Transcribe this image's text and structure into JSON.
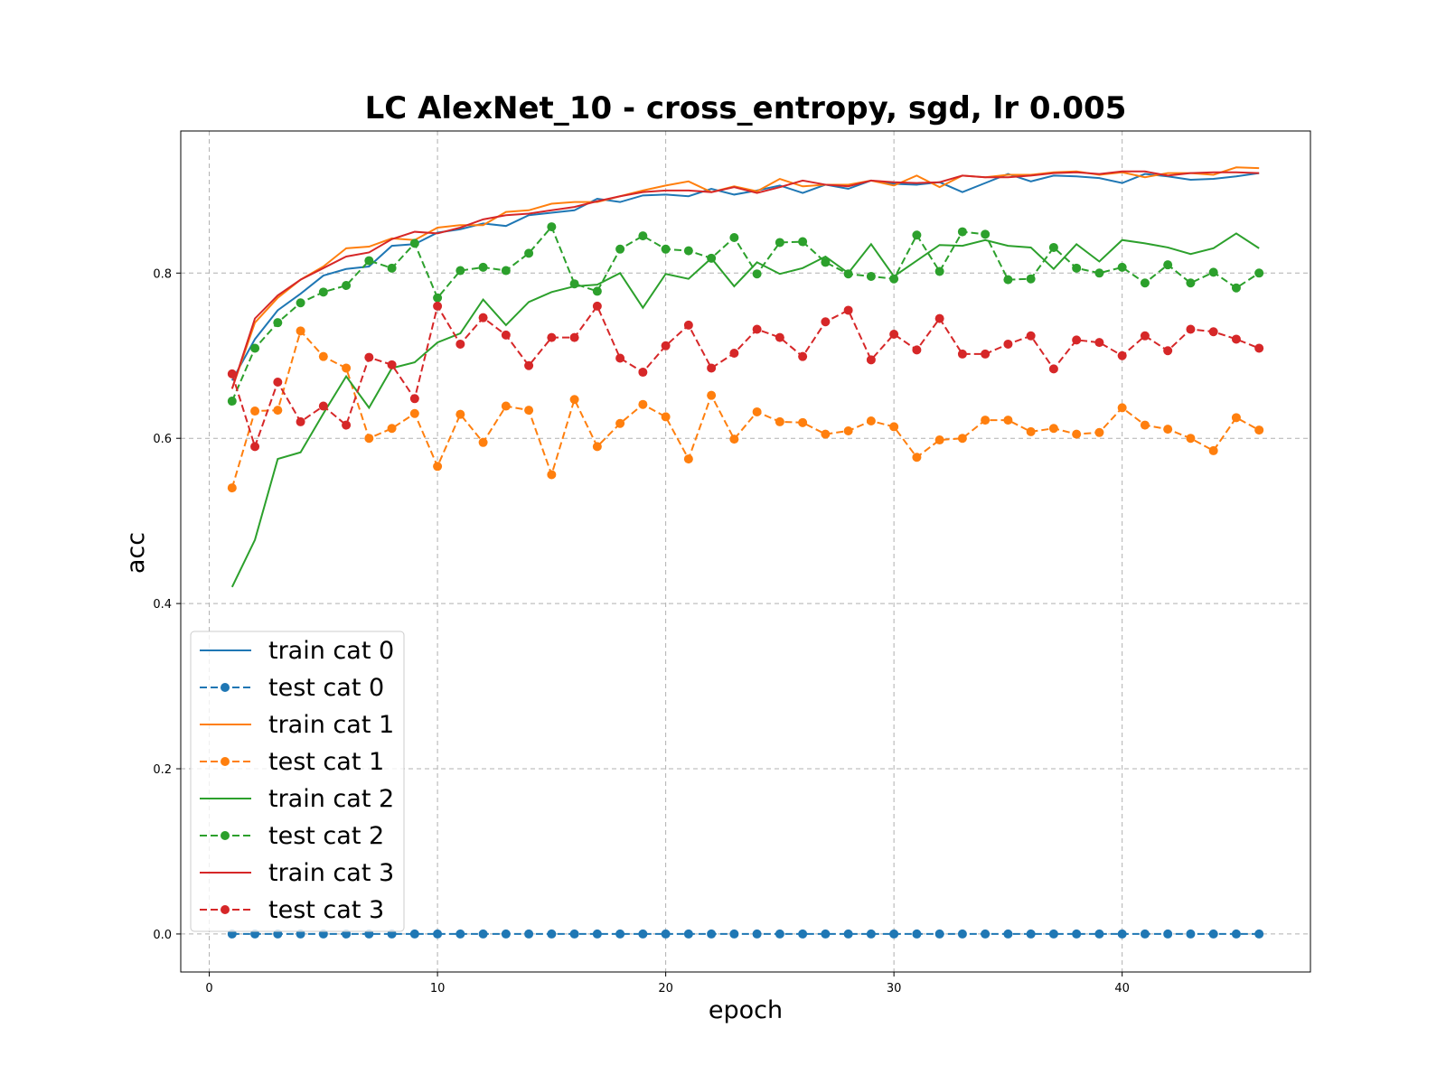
{
  "chart_data": {
    "type": "line",
    "title": "LC AlexNet_10 - cross_entropy, sgd, lr 0.005",
    "xlabel": "epoch",
    "ylabel": "acc",
    "xlim": [
      -1.25,
      48.25
    ],
    "ylim": [
      -0.046,
      0.972
    ],
    "xticks": [
      0,
      10,
      20,
      30,
      40
    ],
    "yticks": [
      0.0,
      0.2,
      0.4,
      0.6,
      0.8
    ],
    "grid": true,
    "legend_position": "lower-left",
    "x": [
      1,
      2,
      3,
      4,
      5,
      6,
      7,
      8,
      9,
      10,
      11,
      12,
      13,
      14,
      15,
      16,
      17,
      18,
      19,
      20,
      21,
      22,
      23,
      24,
      25,
      26,
      27,
      28,
      29,
      30,
      31,
      32,
      33,
      34,
      35,
      36,
      37,
      38,
      39,
      40,
      41,
      42,
      43,
      44,
      45,
      46
    ],
    "series": [
      {
        "name": "train cat 0",
        "color": "#1f77b4",
        "style": "solid",
        "values": [
          0.67,
          0.72,
          0.755,
          0.775,
          0.797,
          0.805,
          0.808,
          0.833,
          0.835,
          0.849,
          0.853,
          0.86,
          0.857,
          0.87,
          0.873,
          0.876,
          0.89,
          0.886,
          0.894,
          0.895,
          0.893,
          0.902,
          0.895,
          0.9,
          0.906,
          0.897,
          0.907,
          0.902,
          0.912,
          0.908,
          0.907,
          0.91,
          0.898,
          0.909,
          0.92,
          0.911,
          0.918,
          0.917,
          0.915,
          0.909,
          0.92,
          0.917,
          0.913,
          0.914,
          0.917,
          0.921
        ]
      },
      {
        "name": "test cat 0",
        "color": "#1f77b4",
        "style": "dashed",
        "values": [
          0,
          0,
          0,
          0,
          0,
          0,
          0,
          0,
          0,
          0,
          0,
          0,
          0,
          0,
          0,
          0,
          0,
          0,
          0,
          0,
          0,
          0,
          0,
          0,
          0,
          0,
          0,
          0,
          0,
          0,
          0,
          0,
          0,
          0,
          0,
          0,
          0,
          0,
          0,
          0,
          0,
          0,
          0,
          0,
          0,
          0
        ]
      },
      {
        "name": "train cat 1",
        "color": "#ff7f0e",
        "style": "solid",
        "values": [
          0.66,
          0.74,
          0.77,
          0.792,
          0.808,
          0.83,
          0.832,
          0.842,
          0.84,
          0.855,
          0.858,
          0.858,
          0.874,
          0.876,
          0.884,
          0.886,
          0.886,
          0.893,
          0.9,
          0.906,
          0.911,
          0.898,
          0.905,
          0.899,
          0.914,
          0.905,
          0.907,
          0.907,
          0.912,
          0.906,
          0.918,
          0.904,
          0.918,
          0.916,
          0.919,
          0.919,
          0.922,
          0.923,
          0.919,
          0.922,
          0.916,
          0.921,
          0.921,
          0.919,
          0.928,
          0.927
        ]
      },
      {
        "name": "test cat 1",
        "color": "#ff7f0e",
        "style": "dashed",
        "values": [
          0.54,
          0.633,
          0.634,
          0.73,
          0.699,
          0.685,
          0.6,
          0.612,
          0.63,
          0.566,
          0.629,
          0.595,
          0.639,
          0.634,
          0.556,
          0.647,
          0.59,
          0.618,
          0.641,
          0.626,
          0.575,
          0.652,
          0.599,
          0.632,
          0.62,
          0.619,
          0.605,
          0.609,
          0.621,
          0.614,
          0.577,
          0.598,
          0.6,
          0.622,
          0.622,
          0.608,
          0.612,
          0.605,
          0.607,
          0.637,
          0.616,
          0.611,
          0.6,
          0.585,
          0.625,
          0.61
        ]
      },
      {
        "name": "train cat 2",
        "color": "#2ca02c",
        "style": "solid",
        "values": [
          0.42,
          0.477,
          0.575,
          0.583,
          0.63,
          0.675,
          0.637,
          0.685,
          0.692,
          0.716,
          0.727,
          0.768,
          0.737,
          0.765,
          0.777,
          0.784,
          0.786,
          0.8,
          0.758,
          0.799,
          0.793,
          0.818,
          0.784,
          0.813,
          0.799,
          0.806,
          0.82,
          0.8,
          0.835,
          0.796,
          0.815,
          0.834,
          0.833,
          0.84,
          0.833,
          0.831,
          0.805,
          0.835,
          0.814,
          0.84,
          0.836,
          0.831,
          0.823,
          0.83,
          0.848,
          0.83
        ]
      },
      {
        "name": "test cat 2",
        "color": "#2ca02c",
        "style": "dashed",
        "values": [
          0.645,
          0.709,
          0.74,
          0.764,
          0.777,
          0.785,
          0.815,
          0.806,
          0.836,
          0.77,
          0.803,
          0.807,
          0.803,
          0.824,
          0.856,
          0.787,
          0.778,
          0.829,
          0.845,
          0.829,
          0.827,
          0.818,
          0.843,
          0.799,
          0.837,
          0.838,
          0.813,
          0.799,
          0.796,
          0.793,
          0.846,
          0.802,
          0.85,
          0.847,
          0.792,
          0.793,
          0.831,
          0.806,
          0.8,
          0.807,
          0.788,
          0.81,
          0.788,
          0.801,
          0.782,
          0.8
        ]
      },
      {
        "name": "train cat 3",
        "color": "#d62728",
        "style": "solid",
        "values": [
          0.66,
          0.745,
          0.773,
          0.792,
          0.806,
          0.82,
          0.825,
          0.841,
          0.85,
          0.848,
          0.855,
          0.865,
          0.87,
          0.872,
          0.876,
          0.88,
          0.887,
          0.893,
          0.898,
          0.9,
          0.9,
          0.898,
          0.904,
          0.897,
          0.904,
          0.912,
          0.907,
          0.905,
          0.912,
          0.91,
          0.909,
          0.91,
          0.918,
          0.916,
          0.916,
          0.918,
          0.921,
          0.922,
          0.92,
          0.923,
          0.923,
          0.918,
          0.921,
          0.922,
          0.922,
          0.921
        ]
      },
      {
        "name": "test cat 3",
        "color": "#d62728",
        "style": "dashed",
        "values": [
          0.678,
          0.59,
          0.668,
          0.62,
          0.639,
          0.616,
          0.698,
          0.689,
          0.648,
          0.76,
          0.714,
          0.746,
          0.725,
          0.688,
          0.722,
          0.722,
          0.76,
          0.697,
          0.68,
          0.712,
          0.737,
          0.685,
          0.703,
          0.732,
          0.722,
          0.699,
          0.741,
          0.755,
          0.695,
          0.726,
          0.707,
          0.745,
          0.702,
          0.702,
          0.714,
          0.724,
          0.684,
          0.719,
          0.716,
          0.7,
          0.724,
          0.706,
          0.732,
          0.729,
          0.72,
          0.709
        ]
      }
    ]
  }
}
